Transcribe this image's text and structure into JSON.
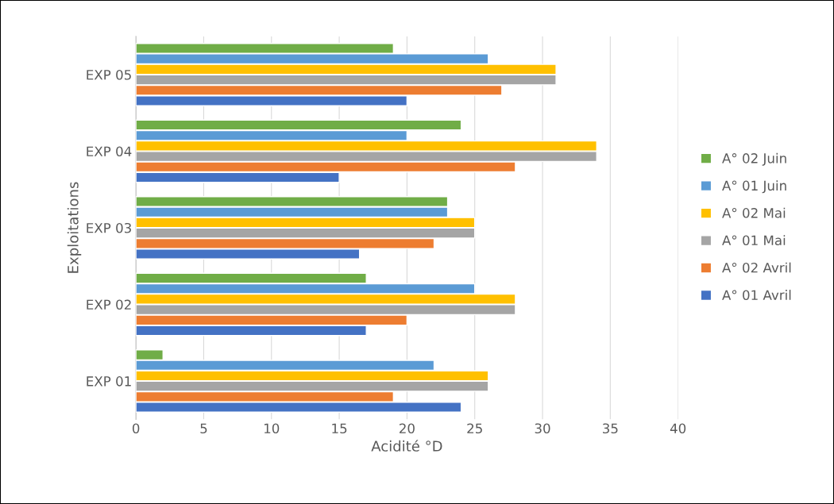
{
  "chart_data": {
    "type": "bar",
    "orientation": "horizontal",
    "xlabel": "Acidité °D",
    "ylabel": "Exploitations",
    "categories": [
      "EXP 05",
      "EXP 04",
      "EXP 03",
      "EXP 02",
      "EXP 01"
    ],
    "series": [
      {
        "name": "A° 01 Avril",
        "color": "#4472c4",
        "values": [
          20,
          15,
          16.5,
          17,
          24
        ]
      },
      {
        "name": "A° 02 Avril",
        "color": "#ed7d31",
        "values": [
          27,
          28,
          22,
          20,
          19
        ]
      },
      {
        "name": "A° 01 Mai",
        "color": "#a5a5a5",
        "values": [
          31,
          34,
          25,
          28,
          26
        ]
      },
      {
        "name": "A° 02 Mai",
        "color": "#ffc000",
        "values": [
          31,
          34,
          25,
          28,
          26
        ]
      },
      {
        "name": "A° 01 Juin",
        "color": "#5b9bd5",
        "values": [
          26,
          20,
          23,
          25,
          22
        ]
      },
      {
        "name": "A° 02 Juin",
        "color": "#70ad47",
        "values": [
          19,
          24,
          23,
          17,
          2
        ]
      }
    ],
    "xlim": [
      0,
      40
    ],
    "xticks": [
      0,
      5,
      10,
      15,
      20,
      25,
      30,
      35,
      40
    ],
    "grid": "x",
    "legend": "right"
  }
}
